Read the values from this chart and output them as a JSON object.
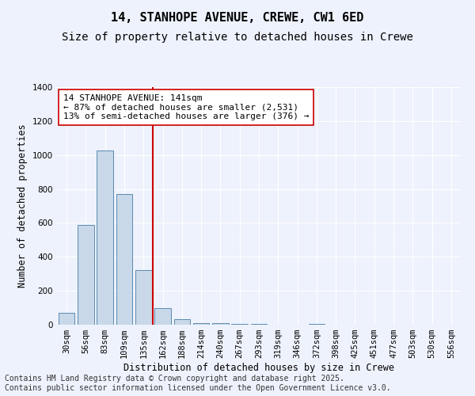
{
  "title_line1": "14, STANHOPE AVENUE, CREWE, CW1 6ED",
  "title_line2": "Size of property relative to detached houses in Crewe",
  "xlabel": "Distribution of detached houses by size in Crewe",
  "ylabel": "Number of detached properties",
  "categories": [
    "30sqm",
    "56sqm",
    "83sqm",
    "109sqm",
    "135sqm",
    "162sqm",
    "188sqm",
    "214sqm",
    "240sqm",
    "267sqm",
    "293sqm",
    "319sqm",
    "346sqm",
    "372sqm",
    "398sqm",
    "425sqm",
    "451sqm",
    "477sqm",
    "503sqm",
    "530sqm",
    "556sqm"
  ],
  "values": [
    70,
    590,
    1025,
    770,
    320,
    100,
    35,
    10,
    10,
    5,
    5,
    0,
    0,
    5,
    0,
    0,
    0,
    0,
    0,
    0,
    0
  ],
  "bar_color": "#c8d8e8",
  "bar_edge_color": "#5a8ab0",
  "redline_x": 4.5,
  "highlight_color": "#cc0000",
  "annotation_text": "14 STANHOPE AVENUE: 141sqm\n← 87% of detached houses are smaller (2,531)\n13% of semi-detached houses are larger (376) →",
  "annotation_box_color": "#ffffff",
  "annotation_box_edge": "#cc0000",
  "ylim": [
    0,
    1400
  ],
  "yticks": [
    0,
    200,
    400,
    600,
    800,
    1000,
    1200,
    1400
  ],
  "footer_text": "Contains HM Land Registry data © Crown copyright and database right 2025.\nContains public sector information licensed under the Open Government Licence v3.0.",
  "background_color": "#eef2fc",
  "grid_color": "#ffffff",
  "title_fontsize": 11,
  "subtitle_fontsize": 10,
  "axis_label_fontsize": 8.5,
  "tick_fontsize": 7.5,
  "annotation_fontsize": 8,
  "footer_fontsize": 7
}
